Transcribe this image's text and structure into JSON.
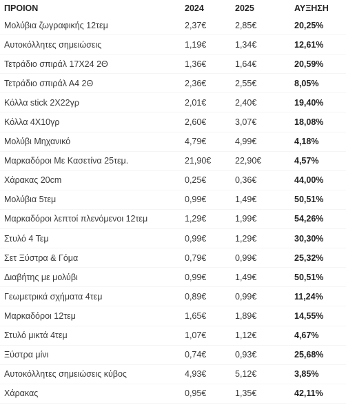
{
  "table": {
    "headers": {
      "product": "ΠΡΟΙΟΝ",
      "y2024": "2024",
      "y2025": "2025",
      "growth": "ΑΥΞΗΣΗ"
    },
    "rows": [
      {
        "product": "Μολύβια ζωγραφικής 12τεμ",
        "y2024": "2,37€",
        "y2025": "2,85€",
        "growth": "20,25%"
      },
      {
        "product": "Αυτοκόλλητες σημειώσεις",
        "y2024": "1,19€",
        "y2025": "1,34€",
        "growth": "12,61%"
      },
      {
        "product": "Τετράδιο σπιράλ 17Χ24 2Θ",
        "y2024": "1,36€",
        "y2025": "1,64€",
        "growth": "20,59%"
      },
      {
        "product": "Τετράδιο σπιράλ Α4 2Θ",
        "y2024": "2,36€",
        "y2025": "2,55€",
        "growth": "8,05%"
      },
      {
        "product": "Κόλλα stick 2Χ22γρ",
        "y2024": "2,01€",
        "y2025": "2,40€",
        "growth": "19,40%"
      },
      {
        "product": "Κόλλα 4Χ10γρ",
        "y2024": "2,60€",
        "y2025": "3,07€",
        "growth": "18,08%"
      },
      {
        "product": "Μολύβι Μηχανικό",
        "y2024": "4,79€",
        "y2025": "4,99€",
        "growth": "4,18%"
      },
      {
        "product": "Μαρκαδόροι Με Κασετίνα 25τεμ.",
        "y2024": "21,90€",
        "y2025": "22,90€",
        "growth": "4,57%"
      },
      {
        "product": "Χάρακας 20cm",
        "y2024": "0,25€",
        "y2025": "0,36€",
        "growth": "44,00%"
      },
      {
        "product": "Μολύβια 5τεμ",
        "y2024": "0,99€",
        "y2025": "1,49€",
        "growth": "50,51%"
      },
      {
        "product": "Μαρκαδόροι λεπτοί πλενόμενοι 12τεμ",
        "y2024": "1,29€",
        "y2025": "1,99€",
        "growth": "54,26%"
      },
      {
        "product": "Στυλό 4 Τεμ",
        "y2024": "0,99€",
        "y2025": "1,29€",
        "growth": "30,30%"
      },
      {
        "product": "Σετ Ξύστρα & Γόμα",
        "y2024": "0,79€",
        "y2025": "0,99€",
        "growth": "25,32%"
      },
      {
        "product": "Διαβήτης με μολύβι",
        "y2024": "0,99€",
        "y2025": "1,49€",
        "growth": "50,51%"
      },
      {
        "product": "Γεωμετρικά σχήματα  4τεμ",
        "y2024": "0,89€",
        "y2025": "0,99€",
        "growth": "11,24%"
      },
      {
        "product": "Μαρκαδόροι 12τεμ",
        "y2024": "1,65€",
        "y2025": "1,89€",
        "growth": "14,55%"
      },
      {
        "product": "Στυλό μικτά 4τεμ",
        "y2024": "1,07€",
        "y2025": "1,12€",
        "growth": "4,67%"
      },
      {
        "product": "Ξύστρα μίνι",
        "y2024": "0,74€",
        "y2025": "0,93€",
        "growth": "25,68%"
      },
      {
        "product": "Αυτοκόλλητες σημειώσεις κύβος",
        "y2024": "4,93€",
        "y2025": "5,12€",
        "growth": "3,85%"
      },
      {
        "product": "Χάρακας",
        "y2024": "0,95€",
        "y2025": "1,35€",
        "growth": "42,11%"
      }
    ]
  }
}
